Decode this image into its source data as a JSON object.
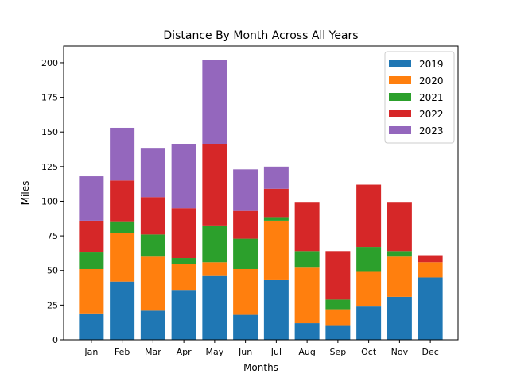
{
  "chart_data": {
    "type": "bar",
    "stacked": true,
    "title": "Distance By Month Across All Years",
    "xlabel": "Months",
    "ylabel": "Miles",
    "ylim": [
      0,
      212
    ],
    "yticks": [
      0,
      25,
      50,
      75,
      100,
      125,
      150,
      175,
      200
    ],
    "grid": false,
    "legend_position": "top-right",
    "categories": [
      "Jan",
      "Feb",
      "Mar",
      "Apr",
      "May",
      "Jun",
      "Jul",
      "Aug",
      "Sep",
      "Oct",
      "Nov",
      "Dec"
    ],
    "series": [
      {
        "name": "2019",
        "color": "#1f77b4",
        "values": [
          19,
          42,
          21,
          36,
          46,
          18,
          43,
          12,
          10,
          24,
          31,
          45
        ]
      },
      {
        "name": "2020",
        "color": "#ff7f0e",
        "values": [
          32,
          35,
          39,
          19,
          10,
          33,
          43,
          40,
          12,
          25,
          29,
          11
        ]
      },
      {
        "name": "2021",
        "color": "#2ca02c",
        "values": [
          12,
          8,
          16,
          4,
          26,
          22,
          2,
          12,
          7,
          18,
          4,
          0
        ]
      },
      {
        "name": "2022",
        "color": "#d62728",
        "values": [
          23,
          30,
          27,
          36,
          59,
          20,
          21,
          35,
          35,
          45,
          35,
          5
        ]
      },
      {
        "name": "2023",
        "color": "#9467bd",
        "values": [
          32,
          38,
          35,
          46,
          61,
          30,
          16,
          0,
          0,
          0,
          0,
          0
        ]
      }
    ]
  }
}
